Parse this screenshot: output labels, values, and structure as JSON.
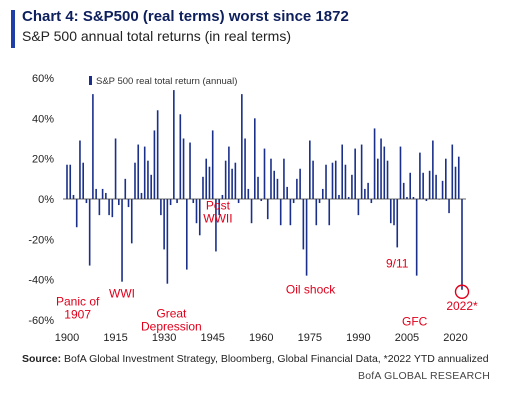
{
  "chart_data": {
    "type": "bar",
    "title": "Chart 4: S&P500 (real terms) worst since 1872",
    "subtitle": "S&P 500 annual total returns (in real terms)",
    "legend": {
      "label": "S&P 500 real total return (annual)",
      "placement": "top-left"
    },
    "ylim": [
      -60,
      60
    ],
    "yticks": [
      "60%",
      "40%",
      "20%",
      "0%",
      "-20%",
      "-40%",
      "-60%"
    ],
    "xticks": [
      "1900",
      "1915",
      "1930",
      "1945",
      "1960",
      "1975",
      "1990",
      "2005",
      "2020"
    ],
    "bar_color": "#1a2f8a",
    "annotation_color": "#e0001b",
    "series": [
      {
        "x": [
          1900,
          1901,
          1902,
          1903,
          1904,
          1905,
          1906,
          1907,
          1908,
          1909,
          1910,
          1911,
          1912,
          1913,
          1914,
          1915,
          1916,
          1917,
          1918,
          1919,
          1920,
          1921,
          1922,
          1923,
          1924,
          1925,
          1926,
          1927,
          1928,
          1929,
          1930,
          1931,
          1932,
          1933,
          1934,
          1935,
          1936,
          1937,
          1938,
          1939,
          1940,
          1941,
          1942,
          1943,
          1944,
          1945,
          1946,
          1947,
          1948,
          1949,
          1950,
          1951,
          1952,
          1953,
          1954,
          1955,
          1956,
          1957,
          1958,
          1959,
          1960,
          1961,
          1962,
          1963,
          1964,
          1965,
          1966,
          1967,
          1968,
          1969,
          1970,
          1971,
          1972,
          1973,
          1974,
          1975,
          1976,
          1977,
          1978,
          1979,
          1980,
          1981,
          1982,
          1983,
          1984,
          1985,
          1986,
          1987,
          1988,
          1989,
          1990,
          1991,
          1992,
          1993,
          1994,
          1995,
          1996,
          1997,
          1998,
          1999,
          2000,
          2001,
          2002,
          2003,
          2004,
          2005,
          2006,
          2007,
          2008,
          2009,
          2010,
          2011,
          2012,
          2013,
          2014,
          2015,
          2016,
          2017,
          2018,
          2019,
          2020,
          2021,
          2022
        ],
        "values": [
          17,
          17,
          2,
          -14,
          29,
          18,
          -2,
          -33,
          52,
          5,
          -8,
          5,
          3,
          -8,
          -9,
          30,
          -3,
          -41,
          10,
          -4,
          -22,
          18,
          27,
          3,
          26,
          19,
          12,
          34,
          44,
          -8,
          -25,
          -42,
          -3,
          54,
          -2,
          42,
          30,
          -35,
          28,
          -2,
          -12,
          -18,
          11,
          20,
          16,
          34,
          -26,
          -8,
          2,
          19,
          26,
          15,
          18,
          -2,
          52,
          30,
          5,
          -12,
          40,
          11,
          -1,
          25,
          -10,
          20,
          14,
          10,
          -13,
          20,
          6,
          -13,
          -2,
          10,
          15,
          -25,
          -38,
          29,
          19,
          -13,
          -2,
          5,
          17,
          -13,
          18,
          19,
          2,
          27,
          17,
          1,
          12,
          25,
          -8,
          27,
          5,
          8,
          -2,
          35,
          20,
          30,
          26,
          19,
          -12,
          -13,
          -24,
          26,
          8,
          1,
          13,
          1,
          -38,
          23,
          13,
          -1,
          14,
          29,
          12,
          0,
          9,
          20,
          -7,
          27,
          16,
          21,
          -45
        ]
      }
    ],
    "annotations": [
      {
        "lines": [
          "Panic of",
          "1907"
        ],
        "year": 1907
      },
      {
        "lines": [
          "WWI"
        ],
        "year": 1917
      },
      {
        "lines": [
          "Great",
          "Depression"
        ],
        "year": 1931
      },
      {
        "lines": [
          "Post",
          "WWII"
        ],
        "year": 1946
      },
      {
        "lines": [
          "Oil shock"
        ],
        "year": 1974
      },
      {
        "lines": [
          "9/11"
        ],
        "year": 2002
      },
      {
        "lines": [
          "GFC"
        ],
        "year": 2008
      },
      {
        "lines": [
          "2022*"
        ],
        "year": 2022,
        "circled": true
      }
    ]
  },
  "footer": {
    "source_label": "Source:",
    "source_text": " BofA Global Investment Strategy, Bloomberg, Global Financial Data, *2022 YTD annualized",
    "brand": "BofA GLOBAL RESEARCH"
  }
}
